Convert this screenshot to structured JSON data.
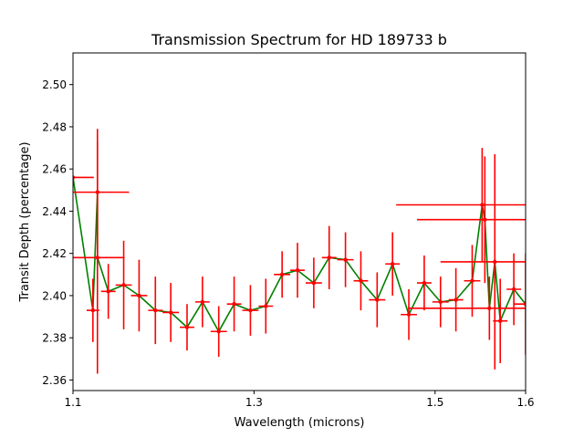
{
  "chart_data": {
    "type": "line",
    "title": "Transmission Spectrum for HD 189733 b",
    "xlabel": "Wavelength (microns)",
    "ylabel": "Transit Depth (percentage)",
    "xlim": [
      1.1,
      1.6
    ],
    "ylim": [
      2.355,
      2.515
    ],
    "xticks": [
      1.1,
      1.3,
      1.5,
      1.6
    ],
    "xtick_labels": [
      "1.1",
      "1.3",
      "1.5",
      "1.6"
    ],
    "yticks": [
      2.36,
      2.38,
      2.4,
      2.42,
      2.44,
      2.46,
      2.48,
      2.5
    ],
    "ytick_labels": [
      "2.36",
      "2.38",
      "2.40",
      "2.42",
      "2.44",
      "2.46",
      "2.48",
      "2.50"
    ],
    "grid": false,
    "line_color": "#008000",
    "error_color": "#ff0000",
    "points": [
      {
        "x": 1.1,
        "y": 2.456,
        "xerr": 0.023,
        "yerr": 0.0
      },
      {
        "x": 1.122,
        "y": 2.393,
        "xerr": 0.007,
        "yerr": 0.015
      },
      {
        "x": 1.127,
        "y": 2.449,
        "xerr": 0.035,
        "yerr": 0.03
      },
      {
        "x": 1.127,
        "y": 2.418,
        "xerr": 0.03,
        "yerr": 0.055
      },
      {
        "x": 1.139,
        "y": 2.402,
        "xerr": 0.008,
        "yerr": 0.013
      },
      {
        "x": 1.156,
        "y": 2.405,
        "xerr": 0.009,
        "yerr": 0.021
      },
      {
        "x": 1.173,
        "y": 2.4,
        "xerr": 0.009,
        "yerr": 0.017
      },
      {
        "x": 1.191,
        "y": 2.393,
        "xerr": 0.008,
        "yerr": 0.016
      },
      {
        "x": 1.208,
        "y": 2.392,
        "xerr": 0.009,
        "yerr": 0.014
      },
      {
        "x": 1.226,
        "y": 2.385,
        "xerr": 0.008,
        "yerr": 0.011
      },
      {
        "x": 1.243,
        "y": 2.397,
        "xerr": 0.008,
        "yerr": 0.012
      },
      {
        "x": 1.261,
        "y": 2.383,
        "xerr": 0.009,
        "yerr": 0.012
      },
      {
        "x": 1.278,
        "y": 2.396,
        "xerr": 0.008,
        "yerr": 0.013
      },
      {
        "x": 1.296,
        "y": 2.393,
        "xerr": 0.009,
        "yerr": 0.012
      },
      {
        "x": 1.313,
        "y": 2.395,
        "xerr": 0.008,
        "yerr": 0.013
      },
      {
        "x": 1.331,
        "y": 2.41,
        "xerr": 0.009,
        "yerr": 0.011
      },
      {
        "x": 1.348,
        "y": 2.412,
        "xerr": 0.008,
        "yerr": 0.013
      },
      {
        "x": 1.366,
        "y": 2.406,
        "xerr": 0.009,
        "yerr": 0.012
      },
      {
        "x": 1.383,
        "y": 2.418,
        "xerr": 0.008,
        "yerr": 0.015
      },
      {
        "x": 1.401,
        "y": 2.417,
        "xerr": 0.009,
        "yerr": 0.013
      },
      {
        "x": 1.418,
        "y": 2.407,
        "xerr": 0.008,
        "yerr": 0.014
      },
      {
        "x": 1.436,
        "y": 2.398,
        "xerr": 0.009,
        "yerr": 0.013
      },
      {
        "x": 1.453,
        "y": 2.415,
        "xerr": 0.008,
        "yerr": 0.015
      },
      {
        "x": 1.471,
        "y": 2.391,
        "xerr": 0.009,
        "yerr": 0.012
      },
      {
        "x": 1.488,
        "y": 2.406,
        "xerr": 0.008,
        "yerr": 0.013
      },
      {
        "x": 1.506,
        "y": 2.397,
        "xerr": 0.009,
        "yerr": 0.012
      },
      {
        "x": 1.523,
        "y": 2.398,
        "xerr": 0.008,
        "yerr": 0.015
      },
      {
        "x": 1.541,
        "y": 2.407,
        "xerr": 0.009,
        "yerr": 0.017
      },
      {
        "x": 1.552,
        "y": 2.443,
        "xerr": 0.095,
        "yerr": 0.027
      },
      {
        "x": 1.555,
        "y": 2.436,
        "xerr": 0.075,
        "yerr": 0.03
      },
      {
        "x": 1.56,
        "y": 2.394,
        "xerr": 0.09,
        "yerr": 0.015
      },
      {
        "x": 1.566,
        "y": 2.416,
        "xerr": 0.06,
        "yerr": 0.051
      },
      {
        "x": 1.572,
        "y": 2.388,
        "xerr": 0.008,
        "yerr": 0.02
      },
      {
        "x": 1.587,
        "y": 2.403,
        "xerr": 0.008,
        "yerr": 0.017
      },
      {
        "x": 1.6,
        "y": 2.396,
        "xerr": 0.013,
        "yerr": 0.024
      }
    ]
  }
}
